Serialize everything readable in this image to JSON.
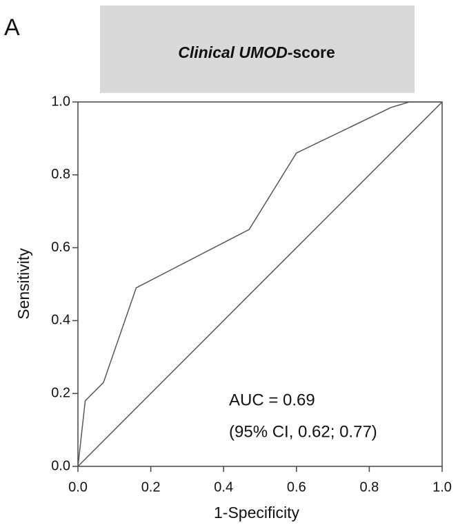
{
  "panel_label": "A",
  "chart_data": {
    "type": "line",
    "title": [
      "Clinical UMOD",
      "-score"
    ],
    "x_label": "1-Specificity",
    "y_label": "Sensitivity",
    "annotations": [
      "AUC =  0.69",
      "(95% CI, 0.62; 0.77)"
    ],
    "series": [
      {
        "color": "#555555",
        "x": [
          0,
          0.02,
          0.07,
          0.16,
          0.47,
          0.6,
          0.86,
          0.91,
          1.0
        ],
        "values": [
          0,
          0.18,
          0.23,
          0.49,
          0.65,
          0.86,
          0.985,
          1.0,
          1.0
        ]
      },
      {
        "color": "#555555",
        "x": [
          0,
          1.0
        ],
        "values": [
          0,
          1.0
        ]
      }
    ],
    "xlim": [
      0,
      1.0
    ],
    "ylim": [
      0,
      1.0
    ],
    "xticks": [
      {
        "value": 0,
        "label": "0.0"
      },
      0.2,
      0.4,
      0.6,
      0.8,
      {
        "value": 1,
        "label": "1.0"
      }
    ],
    "yticks": [
      {
        "value": 0,
        "label": "0.0"
      },
      0.2,
      0.4,
      0.6,
      0.8,
      {
        "value": 1,
        "label": "1.0"
      }
    ]
  }
}
